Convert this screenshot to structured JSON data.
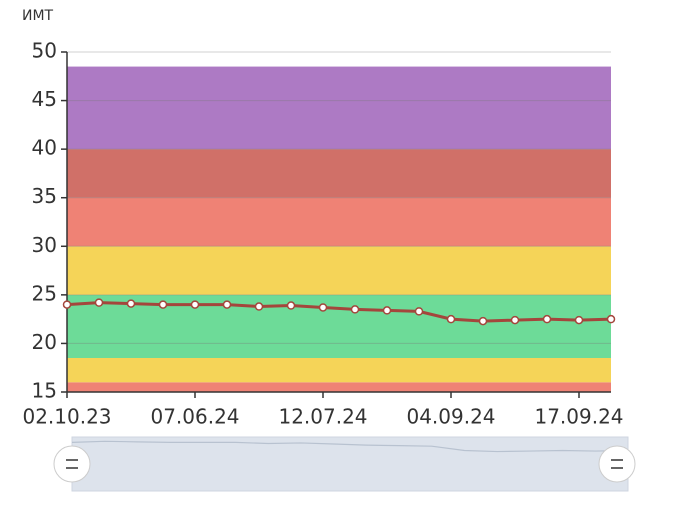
{
  "chart_data": {
    "type": "line",
    "y_label": "ИМТ",
    "categories": [
      "02.10.23",
      null,
      null,
      null,
      "07.06.24",
      null,
      null,
      null,
      "12.07.24",
      null,
      null,
      null,
      "04.09.24",
      null,
      null,
      null,
      "17.09.24",
      null
    ],
    "series": [
      {
        "name": "ИМТ",
        "color": "#a4463c",
        "values": [
          24.0,
          24.2,
          24.1,
          24.0,
          24.0,
          24.0,
          23.8,
          23.9,
          23.7,
          23.5,
          23.4,
          23.3,
          22.5,
          22.3,
          22.4,
          22.5,
          22.4,
          22.5
        ]
      }
    ],
    "bands": [
      {
        "from": 15,
        "to": 16,
        "color": "#ef8275"
      },
      {
        "from": 16,
        "to": 18.5,
        "color": "#f5d458"
      },
      {
        "from": 18.5,
        "to": 25,
        "color": "#6ddb98"
      },
      {
        "from": 25,
        "to": 30,
        "color": "#f5d458"
      },
      {
        "from": 30,
        "to": 35,
        "color": "#ef8275"
      },
      {
        "from": 35,
        "to": 40,
        "color": "#d07068"
      },
      {
        "from": 40,
        "to": 48.5,
        "color": "#ad7ac4"
      }
    ],
    "ylim": [
      15,
      50
    ],
    "yticks": [
      15,
      20,
      25,
      30,
      35,
      40,
      45,
      50
    ],
    "grid": true
  }
}
